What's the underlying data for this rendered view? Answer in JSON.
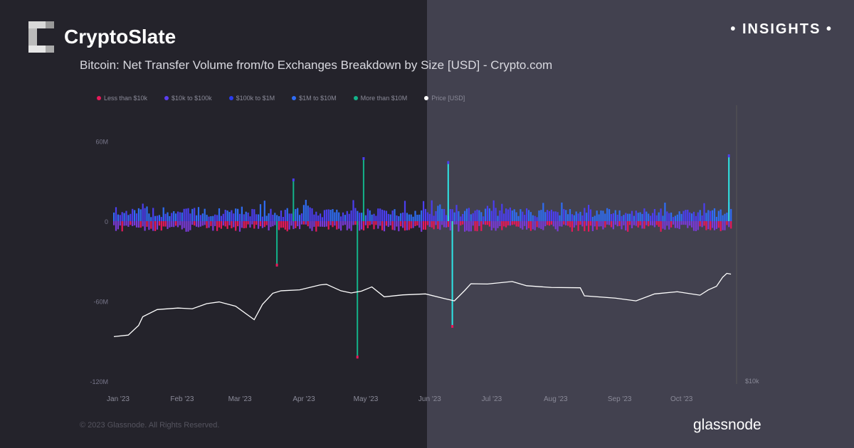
{
  "header": {
    "brand": "CryptoSlate",
    "badge": "• INSIGHTS •",
    "title": "Bitcoin: Net Transfer Volume from/to Exchanges Breakdown by Size [USD] - Crypto.com"
  },
  "footer": {
    "copyright": "© 2023 Glassnode. All Rights Reserved.",
    "source_logo": "glassnode"
  },
  "chart_data": {
    "type": "bar",
    "title": "Bitcoin: Net Transfer Volume from/to Exchanges Breakdown by Size [USD] - Crypto.com",
    "legend": [
      {
        "name": "Less than $10k",
        "color": "#e8195a"
      },
      {
        "name": "$10k to $100k",
        "color": "#5b3ef0"
      },
      {
        "name": "$100k to $1M",
        "color": "#2a3cf0"
      },
      {
        "name": "$1M to $10M",
        "color": "#2f6df5"
      },
      {
        "name": "More than $10M",
        "color": "#13b38a"
      },
      {
        "name": "Price [USD]",
        "color": "#ffffff"
      }
    ],
    "legend_position": "top-left",
    "y_ticks": [
      "60M",
      "0",
      "-60M",
      "-120M"
    ],
    "y_tick_values": [
      60,
      0,
      -60,
      -120
    ],
    "ylim": [
      -120,
      80
    ],
    "y2_tick": "$10k",
    "x_ticks": [
      "Jan '23",
      "Feb '23",
      "Mar '23",
      "Apr '23",
      "May '23",
      "Jun '23",
      "Jul '23",
      "Aug '23",
      "Sep '23",
      "Oct '23"
    ],
    "x_tick_days": [
      0,
      31,
      59,
      90,
      120,
      151,
      181,
      212,
      243,
      273
    ],
    "typical_daily_range_musd": [
      -8,
      10
    ],
    "spikes_musd": [
      {
        "day": 79,
        "value": -34,
        "color": "#13b38a"
      },
      {
        "day": 87,
        "value": 32,
        "color": "#13b38a"
      },
      {
        "day": 118,
        "value": -103,
        "color": "#13b38a"
      },
      {
        "day": 121,
        "value": 48,
        "color": "#13b38a"
      },
      {
        "day": 162,
        "value": 45,
        "color": "#2ee6e6"
      },
      {
        "day": 164,
        "value": -80,
        "color": "#2ee6e6"
      },
      {
        "day": 298,
        "value": 50,
        "color": "#2ee6e6"
      }
    ],
    "price_usd": [
      [
        0,
        16600
      ],
      [
        7,
        16900
      ],
      [
        12,
        18900
      ],
      [
        14,
        20900
      ],
      [
        21,
        22700
      ],
      [
        31,
        23100
      ],
      [
        38,
        22900
      ],
      [
        45,
        24300
      ],
      [
        51,
        24800
      ],
      [
        59,
        23600
      ],
      [
        68,
        20200
      ],
      [
        72,
        24100
      ],
      [
        77,
        27400
      ],
      [
        81,
        28200
      ],
      [
        90,
        28500
      ],
      [
        100,
        30200
      ],
      [
        103,
        30400
      ],
      [
        110,
        28200
      ],
      [
        115,
        27500
      ],
      [
        120,
        28100
      ],
      [
        125,
        29500
      ],
      [
        131,
        26300
      ],
      [
        140,
        26900
      ],
      [
        151,
        27200
      ],
      [
        160,
        25800
      ],
      [
        165,
        25100
      ],
      [
        170,
        28300
      ],
      [
        173,
        30600
      ],
      [
        181,
        30500
      ],
      [
        193,
        31400
      ],
      [
        200,
        29900
      ],
      [
        212,
        29300
      ],
      [
        226,
        29200
      ],
      [
        228,
        26600
      ],
      [
        243,
        25900
      ],
      [
        253,
        25100
      ],
      [
        262,
        27200
      ],
      [
        273,
        27900
      ],
      [
        284,
        26800
      ],
      [
        288,
        28500
      ],
      [
        292,
        29700
      ],
      [
        295,
        33000
      ],
      [
        297,
        34500
      ],
      [
        299,
        34200
      ]
    ]
  }
}
